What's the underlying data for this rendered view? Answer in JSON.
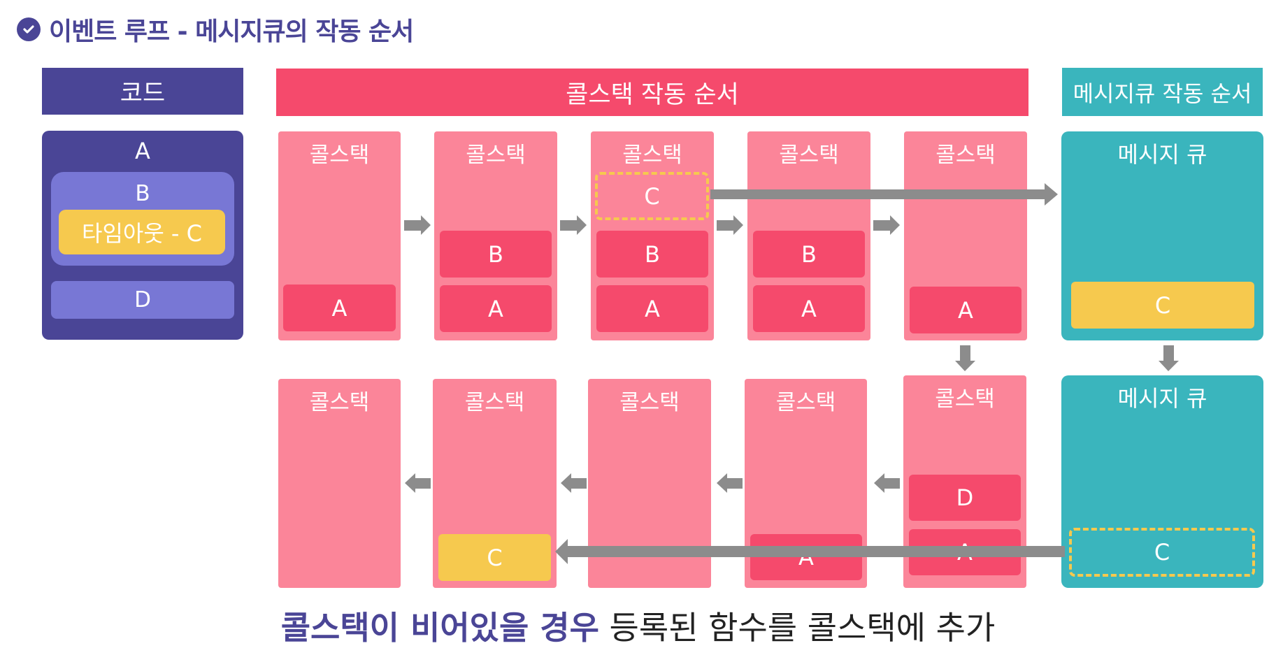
{
  "title": "이벤트 루프 - 메시지큐의 작동 순서",
  "headers": {
    "code": "코드",
    "callstack": "콜스택 작동 순서",
    "queue": "메시지큐 작동 순서"
  },
  "code": {
    "a": "A",
    "b": "B",
    "timeout": "타임아웃 - C",
    "d": "D"
  },
  "stack_label": "콜스택",
  "queue_label": "메시지 큐",
  "blocks": {
    "a": "A",
    "b": "B",
    "c": "C",
    "d": "D"
  },
  "caption": {
    "highlight": "콜스택이 비어있을 경우",
    "rest": " 등록된 함수를 콜스택에 추가"
  },
  "colors": {
    "navy": "#4a4596",
    "pink": "#f54a6c",
    "light_pink": "#fb8599",
    "teal": "#3ab5bd",
    "yellow": "#f6c94e",
    "purple_light": "#7877d5",
    "arrow_gray": "#8c8c8c"
  }
}
